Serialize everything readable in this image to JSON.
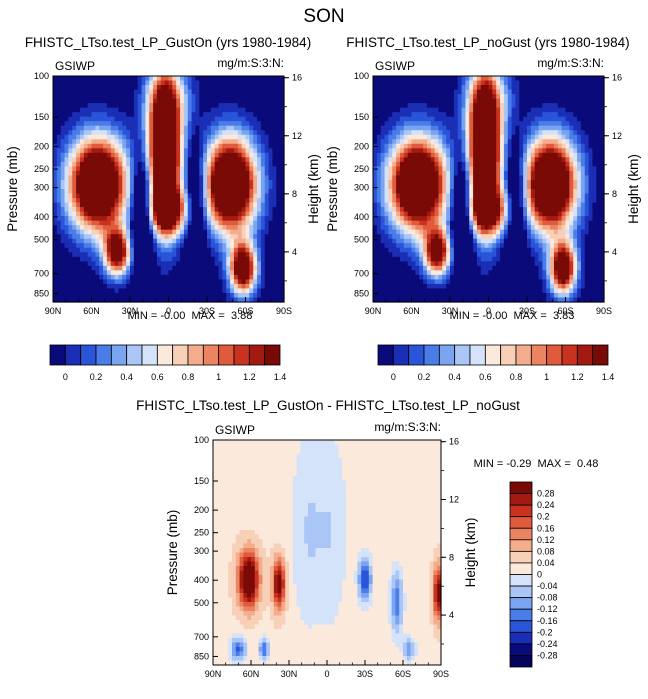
{
  "page_title": "SON",
  "chart_data": [
    {
      "type": "heatmap",
      "title": "FHISTC_LTso.test_LP_GustOn (yrs 1980-1984)",
      "left_label": "GSIWP",
      "right_label": "mg/m:S:3:N:",
      "xlabel": "",
      "ylabel": "Pressure (mb)",
      "ylabel_right": "Height (km)",
      "x_ticks": [
        "90N",
        "60N",
        "30N",
        "0",
        "30S",
        "60S",
        "90S"
      ],
      "x_range": [
        90,
        -90
      ],
      "y_ticks": [
        "100",
        "150",
        "200",
        "250",
        "300",
        "400",
        "500",
        "700",
        "850"
      ],
      "y_range": [
        100,
        925
      ],
      "height_ticks": [
        "16",
        "12",
        "8",
        "4"
      ],
      "stats": "MIN = -0.00  MAX =  3.88",
      "min": -0.0,
      "max": 3.88,
      "colorbar": {
        "orientation": "horizontal",
        "tick_labels": [
          "0",
          "0.2",
          "0.4",
          "0.6",
          "0.8",
          "1",
          "1.2",
          "1.4"
        ],
        "levels": [
          0,
          0.1,
          0.2,
          0.3,
          0.4,
          0.5,
          0.6,
          0.7,
          0.8,
          0.9,
          1.0,
          1.1,
          1.2,
          1.3,
          1.4
        ]
      }
    },
    {
      "type": "heatmap",
      "title": "FHISTC_LTso.test_LP_noGust (yrs 1980-1984)",
      "left_label": "GSIWP",
      "right_label": "mg/m:S:3:N:",
      "xlabel": "",
      "ylabel": "Pressure (mb)",
      "ylabel_right": "Height (km)",
      "x_ticks": [
        "90N",
        "60N",
        "30N",
        "0",
        "30S",
        "60S",
        "90S"
      ],
      "x_range": [
        90,
        -90
      ],
      "y_ticks": [
        "100",
        "150",
        "200",
        "250",
        "300",
        "400",
        "500",
        "700",
        "850"
      ],
      "y_range": [
        100,
        925
      ],
      "height_ticks": [
        "16",
        "12",
        "8",
        "4"
      ],
      "stats": "MIN = -0.00  MAX =  3.83",
      "min": -0.0,
      "max": 3.83,
      "colorbar": {
        "orientation": "horizontal",
        "tick_labels": [
          "0",
          "0.2",
          "0.4",
          "0.6",
          "0.8",
          "1",
          "1.2",
          "1.4"
        ],
        "levels": [
          0,
          0.1,
          0.2,
          0.3,
          0.4,
          0.5,
          0.6,
          0.7,
          0.8,
          0.9,
          1.0,
          1.1,
          1.2,
          1.3,
          1.4
        ]
      }
    },
    {
      "type": "heatmap",
      "title": "FHISTC_LTso.test_LP_GustOn - FHISTC_LTso.test_LP_noGust",
      "left_label": "GSIWP",
      "right_label": "mg/m:S:3:N:",
      "xlabel": "",
      "ylabel": "Pressure (mb)",
      "ylabel_right": "Height (km)",
      "x_ticks": [
        "90N",
        "60N",
        "30N",
        "0",
        "30S",
        "60S",
        "90S"
      ],
      "x_range": [
        90,
        -90
      ],
      "y_ticks": [
        "100",
        "150",
        "200",
        "250",
        "300",
        "400",
        "500",
        "700",
        "850"
      ],
      "y_range": [
        100,
        925
      ],
      "height_ticks": [
        "16",
        "12",
        "8",
        "4"
      ],
      "stats": "MIN = -0.29  MAX =  0.48",
      "min": -0.29,
      "max": 0.48,
      "colorbar": {
        "orientation": "vertical",
        "tick_labels": [
          "0.28",
          "0.24",
          "0.2",
          "0.16",
          "0.12",
          "0.08",
          "0.04",
          "0",
          "-0.04",
          "-0.08",
          "-0.12",
          "-0.16",
          "-0.2",
          "-0.24",
          "-0.28"
        ]
      }
    }
  ],
  "colors": {
    "abs_scale": [
      "#0a0a7a",
      "#1a2fb5",
      "#2a55d8",
      "#4a7de8",
      "#7aa3f0",
      "#a9c6f7",
      "#d5e3fa",
      "#fbe9dc",
      "#f8d0b8",
      "#f3ad8c",
      "#ec8462",
      "#e05a3c",
      "#c9321f",
      "#a31a10",
      "#7a0a06"
    ],
    "diff_scale": [
      "#7a0a06",
      "#a31a10",
      "#c9321f",
      "#e05a3c",
      "#ec8462",
      "#f3ad8c",
      "#f8d0b8",
      "#fbe9dc",
      "#d5e3fa",
      "#a9c6f7",
      "#7aa3f0",
      "#4a7de8",
      "#2a55d8",
      "#1a2fb5",
      "#0a0a7a",
      "#04045a"
    ]
  }
}
